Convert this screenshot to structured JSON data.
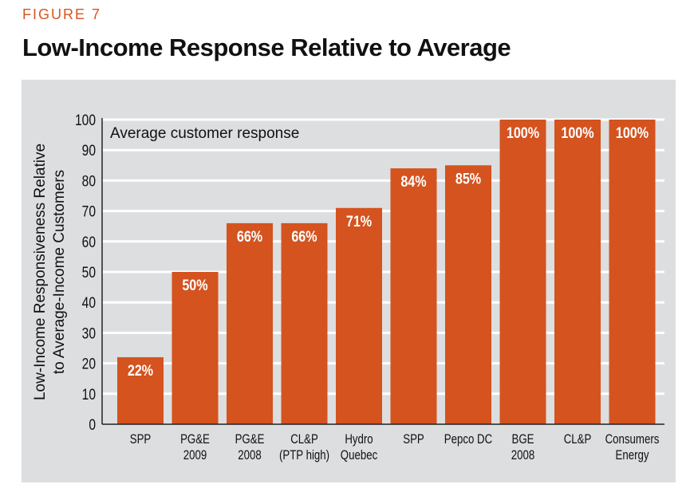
{
  "figure_label": "FIGURE 7",
  "chart_data": {
    "type": "bar",
    "title": "Low-Income Response Relative to Average",
    "ylabel": [
      "Low-Income Responsiveness Relative",
      "to Average-Income Customers"
    ],
    "xlabel": "",
    "ylim": [
      0,
      100
    ],
    "yticks": [
      0,
      10,
      20,
      30,
      40,
      50,
      60,
      70,
      80,
      90,
      100
    ],
    "grid": true,
    "annotation": "Average customer response",
    "categories": [
      [
        "SPP"
      ],
      [
        "PG&E",
        "2009"
      ],
      [
        "PG&E",
        "2008"
      ],
      [
        "CL&P",
        "(PTP high)"
      ],
      [
        "Hydro",
        "Quebec"
      ],
      [
        "SPP"
      ],
      [
        "Pepco DC"
      ],
      [
        "BGE",
        "2008"
      ],
      [
        "CL&P"
      ],
      [
        "Consumers",
        "Energy"
      ]
    ],
    "values": [
      22,
      50,
      66,
      66,
      71,
      84,
      85,
      100,
      100,
      100
    ],
    "data_labels": [
      "22%",
      "50%",
      "66%",
      "66%",
      "71%",
      "84%",
      "85%",
      "100%",
      "100%",
      "100%"
    ],
    "bar_color": "#d4531f"
  }
}
